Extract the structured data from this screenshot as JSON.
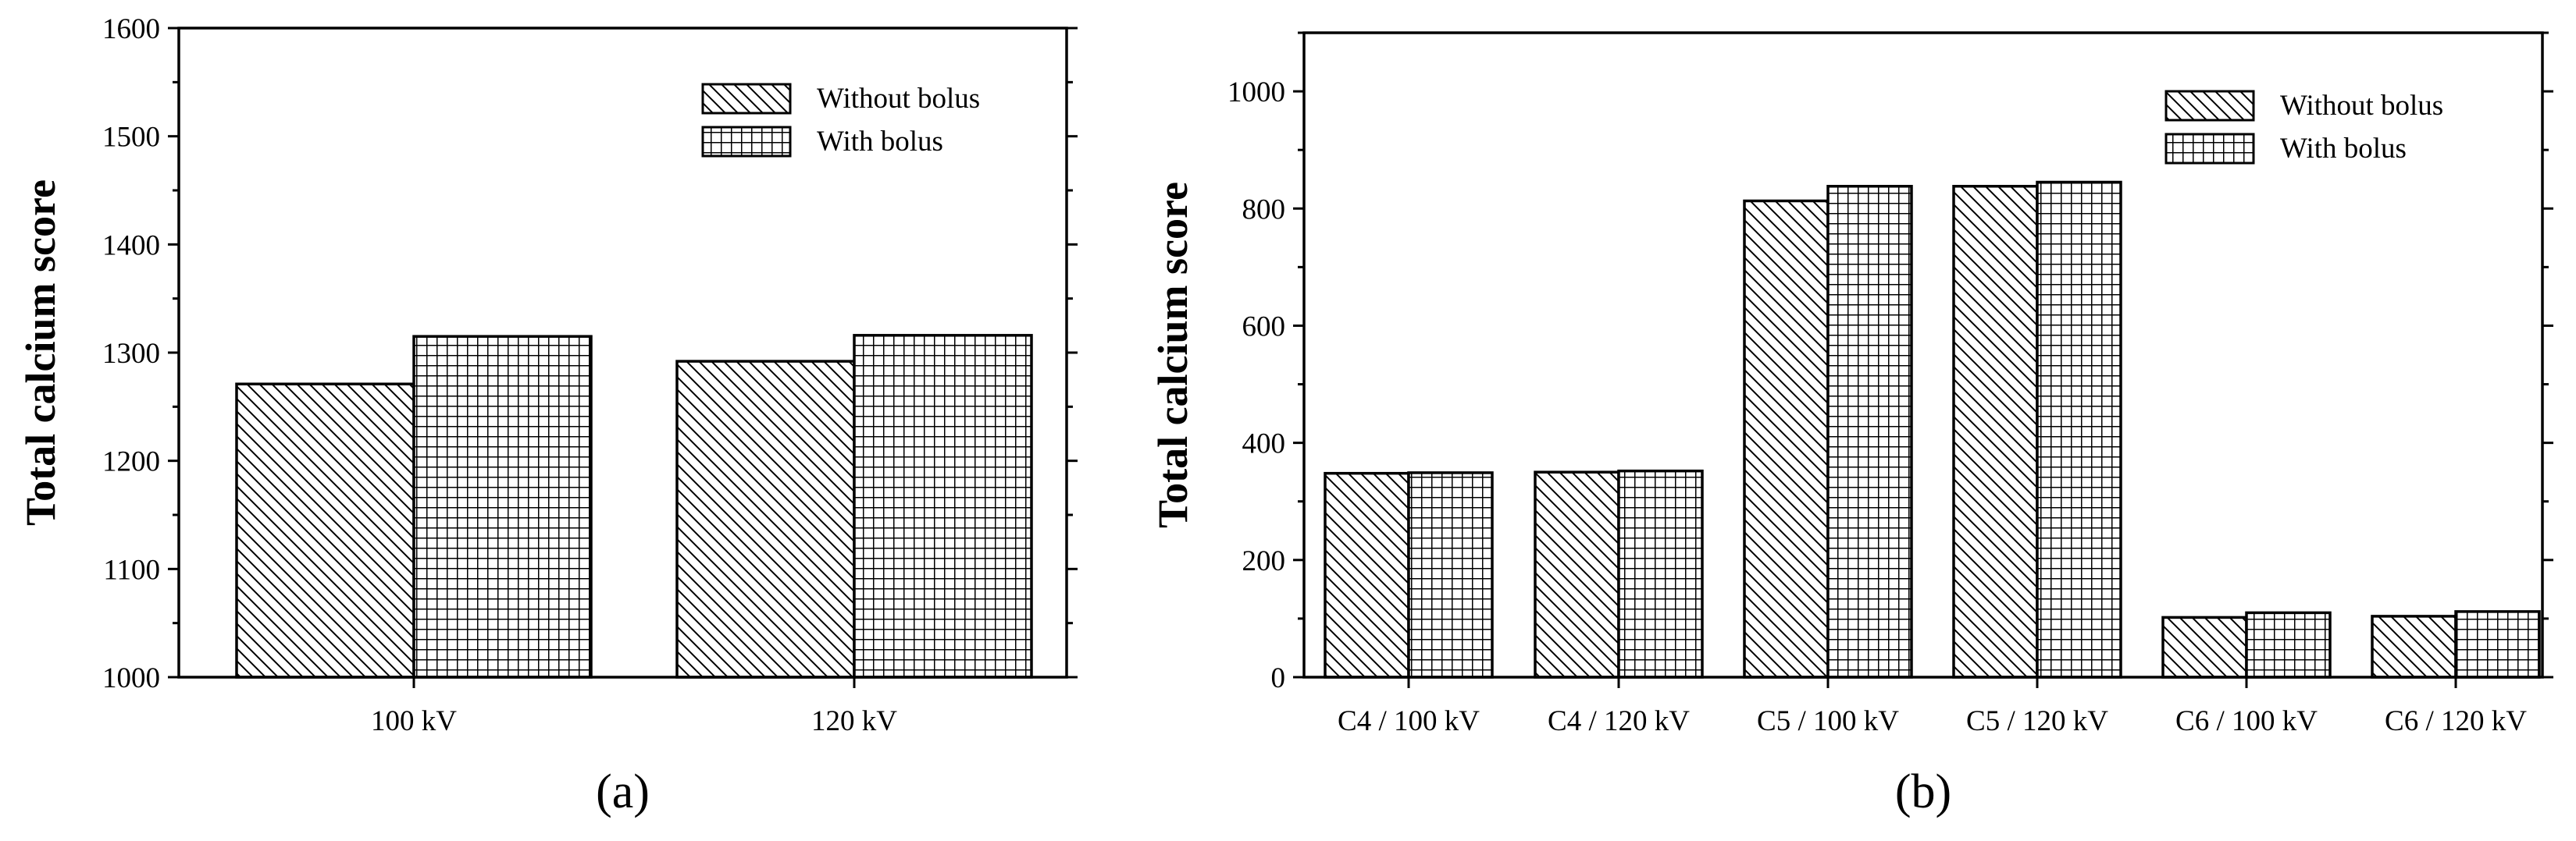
{
  "colors": {
    "stroke": "#000000",
    "background": "#ffffff"
  },
  "patterns": {
    "without_bolus": "diagonal-hatch",
    "with_bolus": "grid-hatch"
  },
  "chart_data": [
    {
      "type": "bar",
      "panel_label": "(a)",
      "ylabel": "Total calcium score",
      "xlabel": "",
      "ylim": [
        1000,
        1600
      ],
      "yticks": [
        "1000",
        "1100",
        "1200",
        "1300",
        "1400",
        "1500",
        "1600"
      ],
      "categories": [
        "100 kV",
        "120 kV"
      ],
      "series": [
        {
          "name": "Without bolus",
          "pattern": "diagonal-hatch",
          "values": [
            1271,
            1292
          ]
        },
        {
          "name": "With bolus",
          "pattern": "grid-hatch",
          "values": [
            1315,
            1316
          ]
        }
      ],
      "legend": "top-right",
      "grid": false
    },
    {
      "type": "bar",
      "panel_label": "(b)",
      "ylabel": "Total calcium score",
      "xlabel": "",
      "ylim": [
        0,
        1100
      ],
      "yticks": [
        "0",
        "200",
        "400",
        "600",
        "800",
        "1000"
      ],
      "categories": [
        "C4 / 100 kV",
        "C4 / 120 kV",
        "C5 / 100 kV",
        "C5 / 120 kV",
        "C6 / 100 kV",
        "C6 / 120 kV"
      ],
      "series": [
        {
          "name": "Without bolus",
          "pattern": "diagonal-hatch",
          "values": [
            348,
            350,
            813,
            838,
            102,
            104
          ]
        },
        {
          "name": "With bolus",
          "pattern": "grid-hatch",
          "values": [
            349,
            352,
            838,
            845,
            110,
            112
          ]
        }
      ],
      "legend": "top-right",
      "grid": false
    }
  ]
}
